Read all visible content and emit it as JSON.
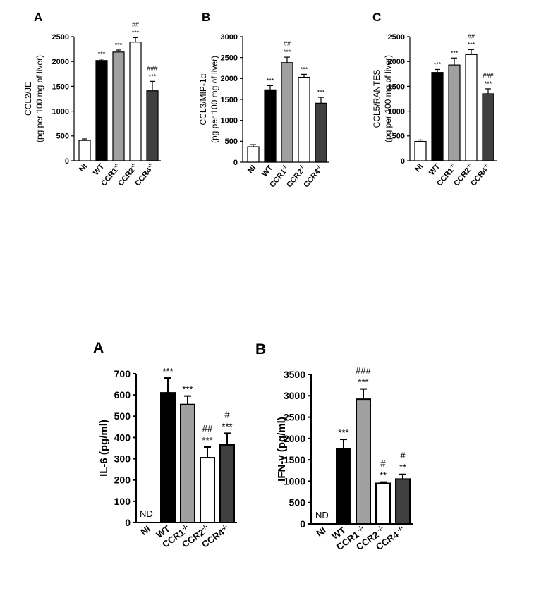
{
  "figure": "cytokine and chemokine levels",
  "chart_data": [
    {
      "type": "bar",
      "panel": "A",
      "ylabel_lines": [
        "CCL2/JE",
        "(pg per 100 mg of liver)"
      ],
      "ylim": [
        0,
        2500
      ],
      "yticks": [
        0,
        500,
        1000,
        1500,
        2000,
        2500
      ],
      "categories": [
        {
          "base": "NI",
          "sup": ""
        },
        {
          "base": "WT",
          "sup": ""
        },
        {
          "base": "CCR1",
          "sup": "-/-"
        },
        {
          "base": "CCR2",
          "sup": "-/-"
        },
        {
          "base": "CCR4",
          "sup": "-/-"
        }
      ],
      "values": [
        410,
        2020,
        2190,
        2390,
        1410
      ],
      "errors": [
        30,
        30,
        40,
        90,
        190
      ],
      "fills": [
        "#ffffff",
        "#000000",
        "#a0a0a0",
        "#ffffff",
        "#404040"
      ],
      "sig_lines": [
        [],
        [
          "***"
        ],
        [
          "***"
        ],
        [
          "##",
          "***"
        ],
        [
          "###",
          "***"
        ]
      ],
      "nd": ""
    },
    {
      "type": "bar",
      "panel": "B",
      "ylabel_lines": [
        "CCL3/MIP-1α",
        "(pg per 100 mg of liver)"
      ],
      "ylim": [
        0,
        3000
      ],
      "yticks": [
        0,
        500,
        1000,
        1500,
        2000,
        2500,
        3000
      ],
      "categories": [
        {
          "base": "NI",
          "sup": ""
        },
        {
          "base": "WT",
          "sup": ""
        },
        {
          "base": "CCR1",
          "sup": "-/-"
        },
        {
          "base": "CCR2",
          "sup": "-/-"
        },
        {
          "base": "CCR4",
          "sup": "-/-"
        }
      ],
      "values": [
        370,
        1730,
        2380,
        2030,
        1410
      ],
      "errors": [
        50,
        100,
        130,
        70,
        140
      ],
      "fills": [
        "#ffffff",
        "#000000",
        "#a0a0a0",
        "#ffffff",
        "#404040"
      ],
      "sig_lines": [
        [],
        [
          "***"
        ],
        [
          "##",
          "***"
        ],
        [
          "***"
        ],
        [
          "***"
        ]
      ],
      "nd": ""
    },
    {
      "type": "bar",
      "panel": "C",
      "ylabel_lines": [
        "CCL5/RANTES",
        "(pg per 100 mg of liver)"
      ],
      "ylim": [
        0,
        2500
      ],
      "yticks": [
        0,
        500,
        1000,
        1500,
        2000,
        2500
      ],
      "categories": [
        {
          "base": "NI",
          "sup": ""
        },
        {
          "base": "WT",
          "sup": ""
        },
        {
          "base": "CCR1",
          "sup": "-/-"
        },
        {
          "base": "CCR2",
          "sup": "-/-"
        },
        {
          "base": "CCR4",
          "sup": "-/-"
        }
      ],
      "values": [
        390,
        1780,
        1930,
        2140,
        1350
      ],
      "errors": [
        30,
        60,
        140,
        100,
        100
      ],
      "fills": [
        "#ffffff",
        "#000000",
        "#a0a0a0",
        "#ffffff",
        "#404040"
      ],
      "sig_lines": [
        [],
        [
          "***"
        ],
        [
          "***"
        ],
        [
          "##",
          "***"
        ],
        [
          "###",
          "***"
        ]
      ],
      "nd": ""
    },
    {
      "type": "bar",
      "panel": "A",
      "ylabel_lines": [
        "IL-6 (pg/ml)"
      ],
      "ylim": [
        0,
        700
      ],
      "yticks": [
        0,
        100,
        200,
        300,
        400,
        500,
        600,
        700
      ],
      "categories": [
        {
          "base": "NI",
          "sup": ""
        },
        {
          "base": "WT",
          "sup": ""
        },
        {
          "base": "CCR1",
          "sup": "-/-"
        },
        {
          "base": "CCR2",
          "sup": "-/-"
        },
        {
          "base": "CCR4",
          "sup": "-/-"
        }
      ],
      "values": [
        0,
        610,
        555,
        305,
        365
      ],
      "errors": [
        0,
        70,
        40,
        50,
        55
      ],
      "fills": [
        "#ffffff",
        "#000000",
        "#a0a0a0",
        "#ffffff",
        "#404040"
      ],
      "sig_lines": [
        [],
        [
          "***"
        ],
        [
          "***"
        ],
        [
          "##",
          "***"
        ],
        [
          "#",
          "***"
        ]
      ],
      "nd": "ND"
    },
    {
      "type": "bar",
      "panel": "B",
      "ylabel_lines": [
        "IFN-γ (pg/ml)"
      ],
      "ylim": [
        0,
        3500
      ],
      "yticks": [
        0,
        500,
        1000,
        1500,
        2000,
        2500,
        3000,
        3500
      ],
      "categories": [
        {
          "base": "NI",
          "sup": ""
        },
        {
          "base": "WT",
          "sup": ""
        },
        {
          "base": "CCR1",
          "sup": " -/-"
        },
        {
          "base": "CCR2",
          "sup": " -/-"
        },
        {
          "base": "CCR4",
          "sup": " -/-"
        }
      ],
      "values": [
        0,
        1750,
        2920,
        950,
        1050
      ],
      "errors": [
        0,
        230,
        240,
        30,
        110
      ],
      "fills": [
        "#ffffff",
        "#000000",
        "#a0a0a0",
        "#ffffff",
        "#404040"
      ],
      "sig_lines": [
        [],
        [
          "***"
        ],
        [
          "###",
          "***"
        ],
        [
          "#",
          "**"
        ],
        [
          "#",
          "**"
        ]
      ],
      "nd": "ND"
    }
  ]
}
